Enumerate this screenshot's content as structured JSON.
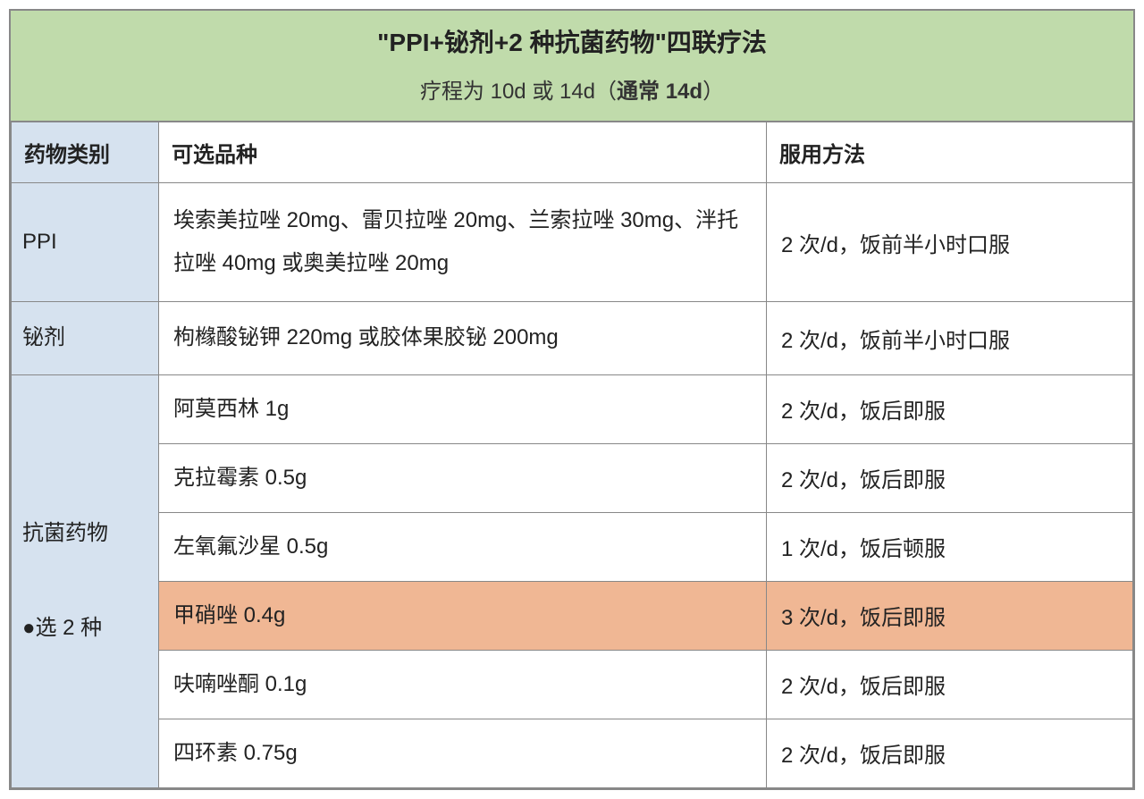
{
  "title": {
    "main": "\"PPI+铋剂+2 种抗菌药物\"四联疗法",
    "sub_prefix": "疗程为 10d 或 14d（",
    "sub_bold": "通常 14d",
    "sub_suffix": "）"
  },
  "headers": {
    "category": "药物类别",
    "options": "可选品种",
    "usage": "服用方法"
  },
  "rows": {
    "ppi": {
      "category": "PPI",
      "options": "埃索美拉唑 20mg、雷贝拉唑 20mg、兰索拉唑 30mg、泮托拉唑 40mg 或奥美拉唑 20mg",
      "usage": "2 次/d，饭前半小时口服"
    },
    "bismuth": {
      "category": "铋剂",
      "options": "枸橼酸铋钾 220mg 或胶体果胶铋 200mg",
      "usage": "2 次/d，饭前半小时口服"
    },
    "antibiotic": {
      "category_line1": "抗菌药物",
      "category_line2": "●选 2 种",
      "items": [
        {
          "options": "阿莫西林 1g",
          "usage": "2 次/d，饭后即服",
          "highlight": false
        },
        {
          "options": "克拉霉素 0.5g",
          "usage": "2 次/d，饭后即服",
          "highlight": false
        },
        {
          "options": "左氧氟沙星 0.5g",
          "usage": "1 次/d，饭后顿服",
          "highlight": false
        },
        {
          "options": "甲硝唑 0.4g",
          "usage": "3 次/d，饭后即服",
          "highlight": true
        },
        {
          "options": "呋喃唑酮 0.1g",
          "usage": "2 次/d，饭后即服",
          "highlight": false
        },
        {
          "options": "四环素 0.75g",
          "usage": "2 次/d，饭后即服",
          "highlight": false
        }
      ]
    }
  },
  "style": {
    "header_bg": "#c0dbab",
    "cat_bg": "#d6e2ef",
    "highlight_bg": "#f0b794",
    "border_color": "#888888",
    "text_color": "#222222",
    "font_size_title": 28,
    "font_size_sub": 24,
    "font_size_cell": 24
  }
}
